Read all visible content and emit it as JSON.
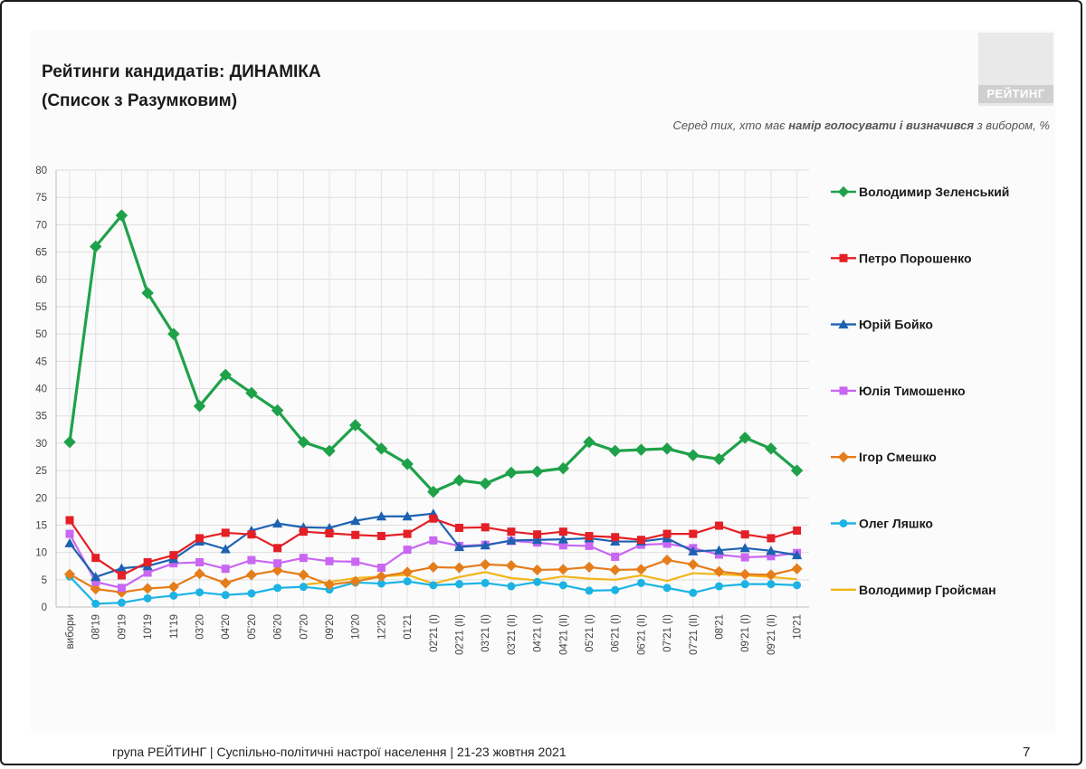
{
  "slide": {
    "title_line1": "Рейтинги кандидатів: ДИНАМІКА",
    "title_line2": "(Список з Разумковим)",
    "logo_text": "РЕЙТИНГ",
    "subtitle_pre": "Серед тих, хто має ",
    "subtitle_bold": "намір голосувати і визначився",
    "subtitle_post": " з вибором, %",
    "footer": "група РЕЙТИНГ | Суспільно-політичні настрої населення  | 21-23 жовтня 2021",
    "page_number": "7"
  },
  "chart_data": {
    "type": "line",
    "title": "Рейтинги кандидатів: ДИНАМІКА",
    "ylim": [
      0,
      80
    ],
    "yticks": [
      0,
      5,
      10,
      15,
      20,
      25,
      30,
      35,
      40,
      45,
      50,
      55,
      60,
      65,
      70,
      75,
      80
    ],
    "grid": true,
    "legend_position": "right",
    "categories": [
      "вибори",
      "08'19",
      "09'19",
      "10'19",
      "11'19",
      "03'20",
      "04'20",
      "05'20",
      "06'20",
      "07'20",
      "09'20",
      "10'20",
      "12'20",
      "01'21",
      "02'21 (I)",
      "02'21 (II)",
      "03'21 (I)",
      "03'21 (II)",
      "04'21 (I)",
      "04'21 (II)",
      "05'21 (I)",
      "06'21 (I)",
      "06'21 (II)",
      "07'21 (I)",
      "07'21 (II)",
      "08'21",
      "09'21 (I)",
      "09'21 (II)",
      "10'21"
    ],
    "series": [
      {
        "name": "Володимир Зеленський",
        "color": "#1fa14a",
        "marker": "diamond",
        "values": [
          30.2,
          66,
          71.7,
          57.5,
          50,
          36.8,
          42.5,
          39.2,
          36,
          30.2,
          28.6,
          33.3,
          29,
          26.2,
          21.1,
          23.2,
          22.6,
          24.6,
          24.8,
          25.4,
          30.2,
          28.6,
          28.8,
          29,
          27.8,
          27.1,
          31,
          29,
          25
        ]
      },
      {
        "name": "Петро Порошенко",
        "color": "#e41f26",
        "marker": "square",
        "values": [
          15.9,
          9,
          5.8,
          8.2,
          9.5,
          12.6,
          13.6,
          13.3,
          10.8,
          13.8,
          13.5,
          13.2,
          13,
          13.4,
          16.2,
          14.5,
          14.6,
          13.8,
          13.3,
          13.8,
          13,
          12.8,
          12.3,
          13.4,
          13.4,
          14.9,
          13.3,
          12.6,
          14
        ]
      },
      {
        "name": "Юрій Бойко",
        "color": "#1d62b1",
        "marker": "triangle",
        "values": [
          11.7,
          5.5,
          7.1,
          7.5,
          8.8,
          12,
          10.6,
          14,
          15.3,
          14.6,
          14.5,
          15.8,
          16.6,
          16.6,
          17.1,
          11,
          11.3,
          12.2,
          12.3,
          12.4,
          12.6,
          12,
          12,
          12.6,
          10.2,
          10.4,
          10.8,
          10.3,
          9.5
        ]
      },
      {
        "name": "Юлія Тимошенко",
        "color": "#c966f2",
        "marker": "square",
        "values": [
          13.4,
          4.6,
          3.5,
          6.3,
          8,
          8.2,
          7,
          8.6,
          8,
          9,
          8.4,
          8.3,
          7.2,
          10.5,
          12.2,
          11.2,
          11.4,
          12.1,
          11.8,
          11.3,
          11.2,
          9.2,
          11.4,
          11.6,
          10.8,
          9.6,
          9.1,
          9.3,
          9.9
        ]
      },
      {
        "name": "Ігор Смешко",
        "color": "#e47d1a",
        "marker": "diamond",
        "values": [
          6,
          3.3,
          2.7,
          3.4,
          3.7,
          6.1,
          4.4,
          5.9,
          6.7,
          5.9,
          4.1,
          4.7,
          5.6,
          6.4,
          7.3,
          7.2,
          7.8,
          7.6,
          6.8,
          6.9,
          7.3,
          6.8,
          6.9,
          8.6,
          7.8,
          6.5,
          6,
          5.9,
          7
        ]
      },
      {
        "name": "Олег Ляшко",
        "color": "#1cb3e4",
        "marker": "circle",
        "values": [
          5.6,
          0.6,
          0.8,
          1.6,
          2.1,
          2.7,
          2.2,
          2.5,
          3.5,
          3.7,
          3.2,
          4.5,
          4.3,
          4.7,
          4,
          4.2,
          4.4,
          3.8,
          4.6,
          4,
          3,
          3.1,
          4.4,
          3.5,
          2.6,
          3.8,
          4.2,
          4.2,
          4
        ]
      },
      {
        "name": "Володимир Гройсман",
        "color": "#f2b51c",
        "marker": "none",
        "values": [
          null,
          null,
          null,
          null,
          null,
          null,
          null,
          null,
          null,
          4.1,
          4.6,
          5.3,
          5.6,
          5.9,
          4.3,
          5.5,
          6.4,
          5.3,
          4.9,
          5.6,
          5.2,
          5,
          5.8,
          4.8,
          6.2,
          6,
          5.8,
          5.5,
          5.1
        ]
      }
    ]
  }
}
